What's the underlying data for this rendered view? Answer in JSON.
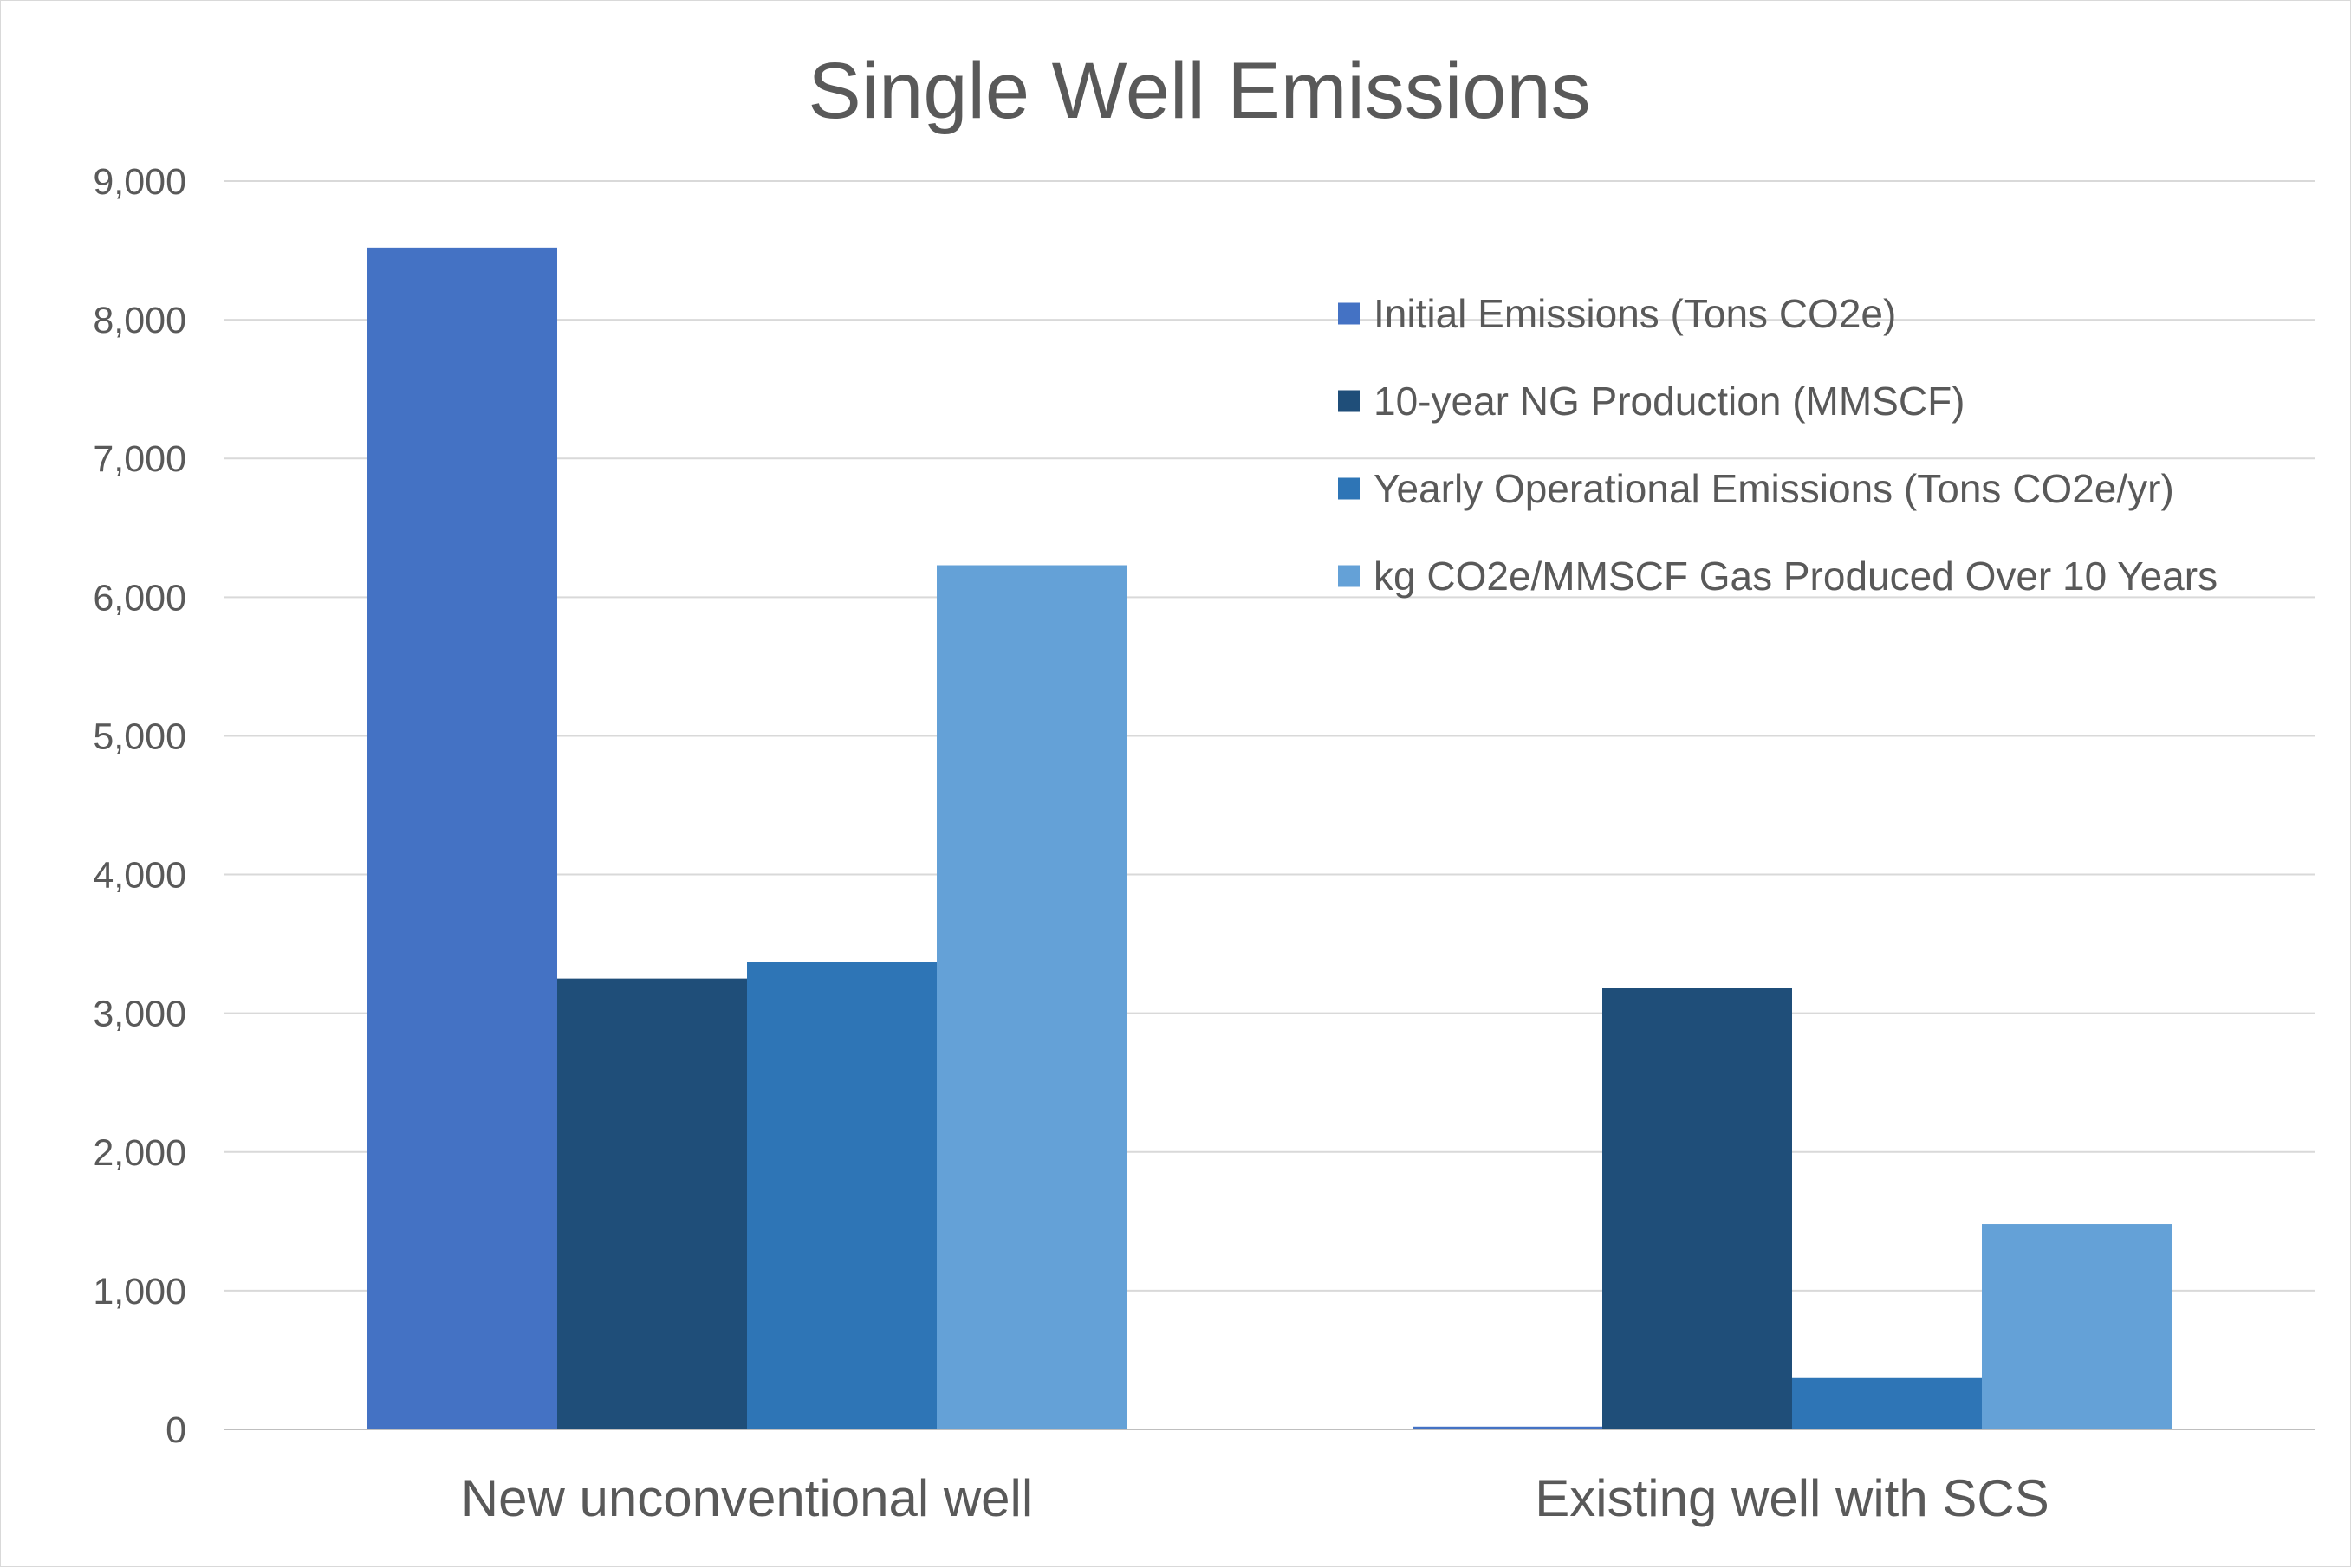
{
  "chart_data": {
    "type": "bar",
    "title": "Single Well Emissions",
    "xlabel": "",
    "ylabel": "",
    "categories": [
      "New unconventional well",
      "Existing well with SCS"
    ],
    "ylim": [
      0,
      9000
    ],
    "y_ticks": [
      0,
      1000,
      2000,
      3000,
      4000,
      5000,
      6000,
      7000,
      8000,
      9000
    ],
    "y_tick_labels": [
      "0",
      "1,000",
      "2,000",
      "3,000",
      "4,000",
      "5,000",
      "6,000",
      "7,000",
      "8,000",
      "9,000"
    ],
    "grid": true,
    "legend_position": "top-right",
    "series": [
      {
        "name": "Initial Emissions (Tons CO2e)",
        "values": [
          8520,
          20
        ],
        "color": "#4472C4"
      },
      {
        "name": "10-year NG Production (MMSCF)",
        "values": [
          3250,
          3180
        ],
        "color": "#1F4E79"
      },
      {
        "name": "Yearly Operational Emissions (Tons CO2e/yr)",
        "values": [
          3370,
          370
        ],
        "color": "#2E75B6"
      },
      {
        "name": "kg CO2e/MMSCF Gas Produced Over 10 Years",
        "values": [
          6230,
          1480
        ],
        "color": "#64A1D7"
      }
    ]
  },
  "colors": {
    "gridline": "#d9d9d9",
    "axis_line": "#bfbfbf",
    "text": "#595959",
    "frame": "#d9d9d9"
  }
}
